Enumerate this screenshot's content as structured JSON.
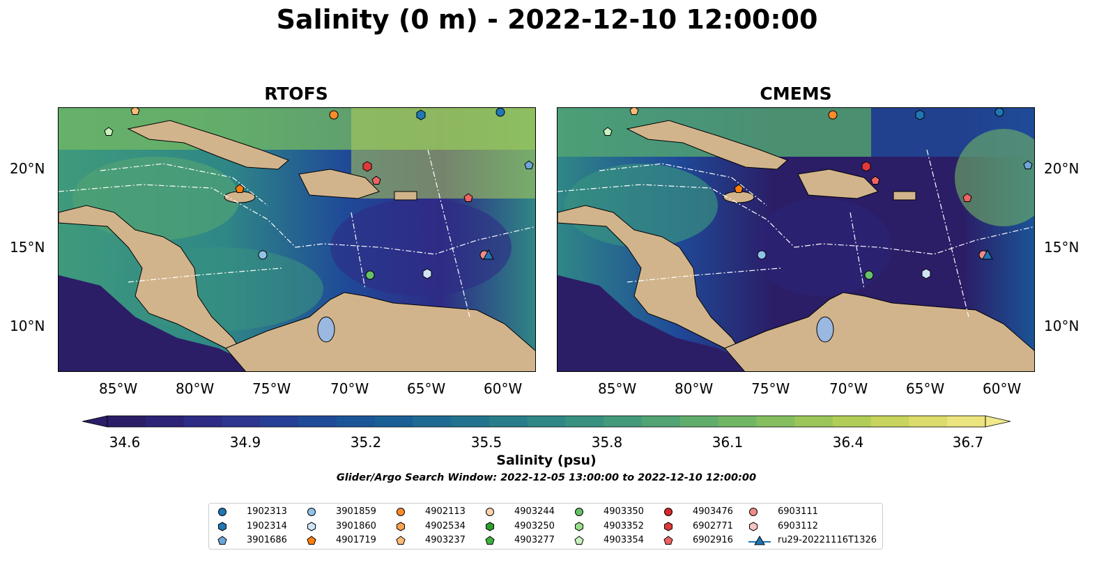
{
  "title": "Salinity (0 m) - 2022-12-10 12:00:00",
  "panels": [
    {
      "title": "RTOFS"
    },
    {
      "title": "CMEMS"
    }
  ],
  "lon_labels": [
    "85°W",
    "80°W",
    "75°W",
    "70°W",
    "65°W",
    "60°W"
  ],
  "lat_labels": [
    "20°N",
    "15°N",
    "10°N"
  ],
  "colorbar": {
    "ticks": [
      "34.6",
      "34.9",
      "35.2",
      "35.5",
      "35.8",
      "36.1",
      "36.4",
      "36.7"
    ],
    "title": "Salinity (psu)",
    "colors": [
      "#2b1e67",
      "#2c2276",
      "#2e2b85",
      "#2d358f",
      "#263f96",
      "#1f4a98",
      "#1a5597",
      "#195f95",
      "#1e6a92",
      "#22738e",
      "#287d8a",
      "#2f8786",
      "#389180",
      "#439a7a",
      "#51a373",
      "#60ad6c",
      "#71b664",
      "#84be5e",
      "#9ac65a",
      "#b1cd58",
      "#c8d45e",
      "#dcdc6c",
      "#ebe47f"
    ]
  },
  "search_window": "Glider/Argo Search Window: 2022-12-05 13:00:00 to 2022-12-10 12:00:00",
  "legend": [
    {
      "label": "1902313",
      "marker": "circle",
      "color": "#1f77b4"
    },
    {
      "label": "1902314",
      "marker": "hexagon",
      "color": "#1f77b4"
    },
    {
      "label": "3901686",
      "marker": "pentagon",
      "color": "#6ea6d8"
    },
    {
      "label": "3901859",
      "marker": "circle",
      "color": "#8fc3ea"
    },
    {
      "label": "3901860",
      "marker": "hexagon",
      "color": "#cfe5f7"
    },
    {
      "label": "4901719",
      "marker": "pentagon",
      "color": "#ff7f0e"
    },
    {
      "label": "4902113",
      "marker": "circle",
      "color": "#ff8c2b"
    },
    {
      "label": "4902534",
      "marker": "hexagon",
      "color": "#ffa24d"
    },
    {
      "label": "4903237",
      "marker": "pentagon",
      "color": "#ffbb78"
    },
    {
      "label": "4903244",
      "marker": "circle",
      "color": "#ffd3ad"
    },
    {
      "label": "4903250",
      "marker": "hexagon",
      "color": "#2ca02c"
    },
    {
      "label": "4903277",
      "marker": "pentagon",
      "color": "#3fb23f"
    },
    {
      "label": "4903350",
      "marker": "circle",
      "color": "#66c266"
    },
    {
      "label": "4903352",
      "marker": "hexagon",
      "color": "#98df8a"
    },
    {
      "label": "4903354",
      "marker": "pentagon",
      "color": "#c9f2bf"
    },
    {
      "label": "4903476",
      "marker": "circle",
      "color": "#d62728"
    },
    {
      "label": "6902771",
      "marker": "hexagon",
      "color": "#e0393a"
    },
    {
      "label": "6902916",
      "marker": "pentagon",
      "color": "#ee6363"
    },
    {
      "label": "6903111",
      "marker": "circle",
      "color": "#f08a8a"
    },
    {
      "label": "6903112",
      "marker": "hexagon",
      "color": "#fbc4c4"
    },
    {
      "label": "ru29-20221116T1326",
      "marker": "triangle-line",
      "color": "#1f77b4"
    }
  ]
}
